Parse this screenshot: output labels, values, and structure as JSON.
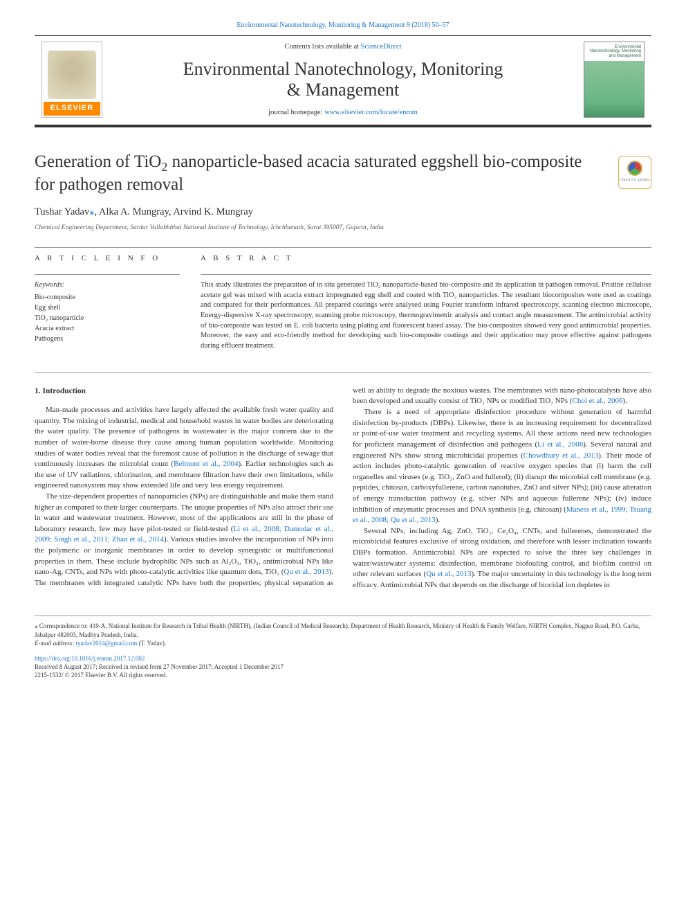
{
  "top_link": {
    "prefix": "",
    "journal": "Environmental Nanotechnology, Monitoring & Management 9 (2018) 50–57"
  },
  "header": {
    "contents_prefix": "Contents lists available at ",
    "contents_link": "ScienceDirect",
    "journal_title_line1": "Environmental Nanotechnology, Monitoring",
    "journal_title_line2": "& Management",
    "homepage_prefix": "journal homepage: ",
    "homepage_link": "www.elsevier.com/locate/enmm",
    "elsevier_label": "ELSEVIER",
    "cover_text": "Environmental\nNanotechnology,\nMonitoring and\nManagement"
  },
  "check_badge": {
    "label": "Check for\nupdates"
  },
  "article": {
    "title_a": "Generation of TiO",
    "title_sub": "2",
    "title_b": " nanoparticle-based acacia saturated eggshell bio-composite for pathogen removal",
    "authors_html": "Tushar Yadav",
    "authors_corr": "⁎",
    "authors_rest": ", Alka A. Mungray, Arvind K. Mungray",
    "affiliation": "Chemical Engineering Department, Sardar Vallabhbhai National Institute of Technology, Ichchhanath, Surat 395007, Gujarat, India"
  },
  "info": {
    "label": "A R T I C L E   I N F O",
    "kw_label": "Keywords:",
    "keywords": [
      "Bio-composite",
      "Egg shell",
      "TiO₂ nanoparticle",
      "Acacia extract",
      "Pathogens"
    ]
  },
  "abstract": {
    "label": "A B S T R A C T",
    "text": "This study illustrates the preparation of in situ generated TiO₂ nanoparticle-based bio-composite and its application in pathogen removal. Pristine cellulose acetate gel was mixed with acacia extract impregnated egg shell and coated with TiO₂ nanoparticles. The resultant biocomposites were used as coatings and compared for their performances. All prepared coatings were analysed using Fourier transform infrared spectroscopy, scanning electron microscope, Energy-dispersive X-ray spectroscopy, scanning probe microscopy, thermogravimetric analysis and contact angle measurement. The antimicrobial activity of bio-composite was tested on E. coli bacteria using plating and fluorescent based assay. The bio-composites showed very good antimicrobial properties. Moreover, the easy and eco-friendly method for developing such bio-composite coatings and their application may prove effective against pathogens during effluent treatment."
  },
  "body": {
    "heading": "1. Introduction",
    "p1a": "Man-made processes and activities have largely affected the available fresh water quality and quantity. The mixing of industrial, medical and household wastes in water bodies are deteriorating the water quality. The presence of pathogens in wastewater is the major concern due to the number of water-borne disease they cause among human population worldwide. Monitoring studies of water bodies reveal that the foremost cause of pollution is the discharge of sewage that continuously increases the microbial count (",
    "p1_ref1": "Belmont et al., 2004",
    "p1b": "). Earlier technologies such as the use of UV radiations, chlorination, and membrane filtration have their own limitations, while engineered nanosystem may show extended life and very less energy requirement.",
    "p2a": "The size-dependent properties of nanoparticles (NPs) are distinguishable and make them stand higher as compared to their larger counterparts. The unique properties of NPs also attract their use in water and wastewater treatment. However, most of the applications are still in the phase of laboratory research, few may have pilot-tested or field-tested (",
    "p2_ref1": "Li et al., 2008; Damodar et al., 2009; Singh et al., 2011; Zhan et al., 2014",
    "p2b": "). Various studies involve the incorporation of NPs into the polymeric or inorganic membranes in order to develop synergistic or multifunctional properties in them. These include hydrophilic NPs such as Al₂O₃, TiO₂, antimicrobial NPs like nano-Ag, CNTs, and NPs with photo-catalytic activities like quantum dots, TiO₂ (",
    "p2_ref2": "Qu et al., 2013",
    "p2c": "). The membranes with integrated catalytic NPs have both the properties; physical separation as well as ability to degrade the noxious wastes. The membranes with nano-photocatalysts have also been developed and usually consist of TiO₂ NPs or modified TiO₂ NPs (",
    "p2_ref3": "Choi et al., 2006",
    "p2d": ").",
    "p3a": "There is a need of appropriate disinfection procedure without generation of harmful disinfection by-products (DBPs). Likewise, there is an increasing requirement for decentralized or point-of-use water treatment and recycling systems. All these actions need new technologies for proficient management of disinfection and pathogens (",
    "p3_ref1": "Li et al., 2008",
    "p3b": "). Several natural and engineered NPs show strong microbicidal properties (",
    "p3_ref2": "Chowdhury et al., 2013",
    "p3c": "). Their mode of action includes photo-catalytic generation of reactive oxygen species that (i) harm the cell organelles and viruses (e.g. TiO₂, ZnO and fullerol); (ii) disrupt the microbial cell membrane (e.g. peptides, chitosan, carboxyfullerene, carbon nanotubes, ZnO and silver NPs); (iii) cause alteration of energy transduction pathway (e.g. silver NPs and aqueous fullerene NPs); (iv) induce inhibition of enzymatic processes and DNA synthesis (e.g. chitosan) (",
    "p3_ref3": "Maness et al., 1999; Tsuang et al., 2008; Qu et al., 2013",
    "p3d": ").",
    "p4a": "Several NPs, including Ag, ZnO, TiO₂, Ce₂O₄, CNTs, and fullerenes, demonstrated the microbicidal features exclusive of strong oxidation, and therefore with lesser inclination towards DBPs formation. Antimicrobial NPs are expected to solve the three key challenges in water/wastewater systems: disinfection, membrane biofouling control, and biofilm control on other relevant surfaces (",
    "p4_ref1": "Qu et al., 2013",
    "p4b": "). The major uncertainty in this technology is the long term efficacy. Antimicrobial NPs that depends on the discharge of biocidal ion depletes in"
  },
  "footnotes": {
    "corr": "⁎ Correspondence to: 419-A, National Institute for Research in Tribal Health (NIRTH), (Indian Council of Medical Research), Department of Health Research, Ministry of Health & Family Welfare, NIRTH Complex, Nagpur Road, P.O. Garha, Jabalpur 482003, Madhya Pradesh, India.",
    "email_label": "E-mail address: ",
    "email": "tyadav2014@gmail.com",
    "email_suffix": " (T. Yadav).",
    "doi": "https://doi.org/10.1016/j.enmm.2017.12.002",
    "received": "Received 8 August 2017; Received in revised form 27 November 2017; Accepted 1 December 2017",
    "issn": "2215-1532/ © 2017 Elsevier B.V. All rights reserved."
  },
  "colors": {
    "link": "#1a73cc",
    "elsevier_orange": "#ff8a00",
    "rule": "#999999"
  }
}
